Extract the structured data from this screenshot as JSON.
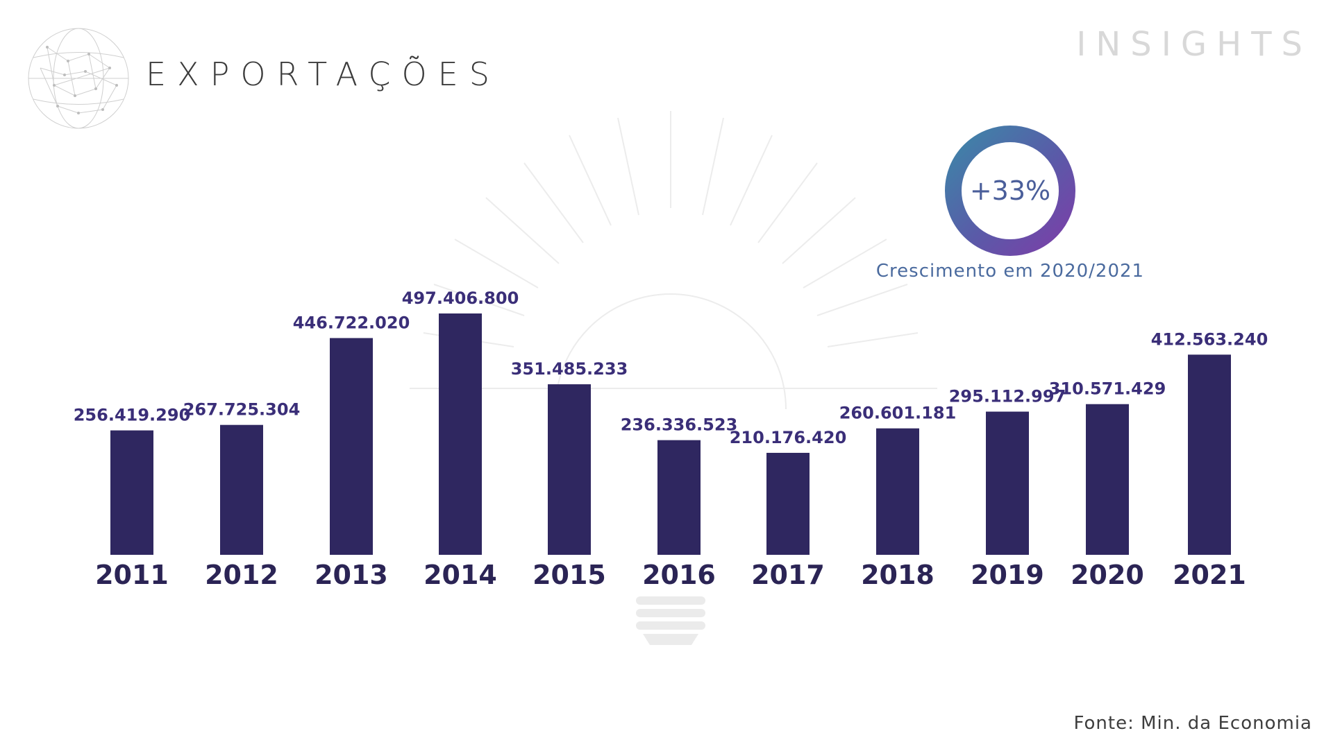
{
  "header": {
    "title": "EXPORTAÇÕES",
    "brand": "INSIGHTS"
  },
  "highlight": {
    "value": "+33%",
    "caption": "Crescimento em 2020/2021",
    "ring_colors": [
      "#3d86a8",
      "#5a5aa8",
      "#7b3fa8"
    ]
  },
  "footer": {
    "source": "Fonte: Min. da Economia"
  },
  "colors": {
    "bar": "#2f2760",
    "bar_label": "#3a2e78",
    "year_label": "#2b2455"
  },
  "chart_data": {
    "type": "bar",
    "categories": [
      "2011",
      "2012",
      "2013",
      "2014",
      "2015",
      "2016",
      "2017",
      "2018",
      "2019",
      "2020",
      "2021"
    ],
    "values": [
      256419290,
      267725304,
      446722020,
      497406800,
      351485233,
      236336523,
      210176420,
      260601181,
      295112997,
      310571429,
      412563240
    ],
    "value_labels": [
      "256.419.290",
      "267.725.304",
      "446.722.020",
      "497.406.800",
      "351.485.233",
      "236.336.523",
      "210.176.420",
      "260.601.181",
      "295.112.997",
      "310.571.429",
      "412.563.240"
    ],
    "title": "",
    "xlabel": "",
    "ylabel": "",
    "grid": false,
    "legend": "none"
  }
}
